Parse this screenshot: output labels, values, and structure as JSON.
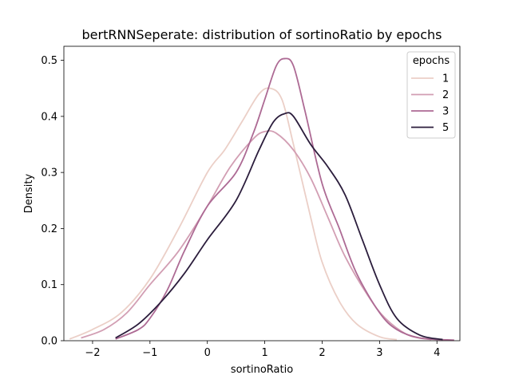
{
  "chart_data": {
    "type": "line",
    "title": "bertRNNSeperate: distribution of sortinoRatio by epochs",
    "xlabel": "sortinoRatio",
    "ylabel": "Density",
    "xlim": [
      -2.5,
      4.4
    ],
    "ylim": [
      0,
      0.525
    ],
    "xticks": [
      -2,
      -1,
      0,
      1,
      2,
      3,
      4
    ],
    "xtick_labels": [
      "−2",
      "−1",
      "0",
      "1",
      "2",
      "3",
      "4"
    ],
    "yticks": [
      0.0,
      0.1,
      0.2,
      0.3,
      0.4,
      0.5
    ],
    "ytick_labels": [
      "0.0",
      "0.1",
      "0.2",
      "0.3",
      "0.4",
      "0.5"
    ],
    "grid": false,
    "legend": {
      "title": "epochs",
      "position": "top-right"
    },
    "series": [
      {
        "name": "1",
        "color": "#ebcfc7",
        "x": [
          -2.4,
          -2.0,
          -1.5,
          -1.0,
          -0.5,
          0.0,
          0.3,
          0.6,
          0.9,
          1.1,
          1.3,
          1.5,
          1.8,
          2.0,
          2.3,
          2.6,
          3.0,
          3.3
        ],
        "y": [
          0.003,
          0.02,
          0.05,
          0.11,
          0.2,
          0.3,
          0.34,
          0.39,
          0.44,
          0.45,
          0.43,
          0.35,
          0.22,
          0.14,
          0.07,
          0.03,
          0.007,
          0.002
        ]
      },
      {
        "name": "2",
        "color": "#d29eb3",
        "x": [
          -2.2,
          -1.8,
          -1.4,
          -1.0,
          -0.5,
          0.0,
          0.4,
          0.8,
          1.0,
          1.2,
          1.5,
          1.8,
          2.1,
          2.4,
          2.8,
          3.1,
          3.5,
          3.9
        ],
        "y": [
          0.005,
          0.02,
          0.05,
          0.1,
          0.16,
          0.24,
          0.31,
          0.36,
          0.373,
          0.37,
          0.34,
          0.29,
          0.22,
          0.15,
          0.08,
          0.04,
          0.01,
          0.002
        ]
      },
      {
        "name": "3",
        "color": "#ad6a94",
        "x": [
          -1.6,
          -1.2,
          -1.0,
          -0.7,
          -0.4,
          0.0,
          0.5,
          0.8,
          1.0,
          1.2,
          1.35,
          1.5,
          1.7,
          2.0,
          2.3,
          2.6,
          3.0,
          3.3,
          3.7,
          4.3
        ],
        "y": [
          0.003,
          0.02,
          0.04,
          0.09,
          0.16,
          0.24,
          0.3,
          0.37,
          0.43,
          0.49,
          0.503,
          0.49,
          0.41,
          0.28,
          0.2,
          0.12,
          0.05,
          0.02,
          0.005,
          0.001
        ]
      },
      {
        "name": "5",
        "color": "#2b1d3c",
        "x": [
          -1.6,
          -1.2,
          -0.8,
          -0.4,
          0.0,
          0.5,
          0.9,
          1.15,
          1.35,
          1.5,
          1.8,
          2.1,
          2.4,
          2.7,
          3.0,
          3.3,
          3.7,
          4.1
        ],
        "y": [
          0.005,
          0.03,
          0.07,
          0.12,
          0.18,
          0.25,
          0.34,
          0.39,
          0.405,
          0.4,
          0.35,
          0.31,
          0.26,
          0.18,
          0.1,
          0.04,
          0.01,
          0.002
        ]
      }
    ]
  }
}
